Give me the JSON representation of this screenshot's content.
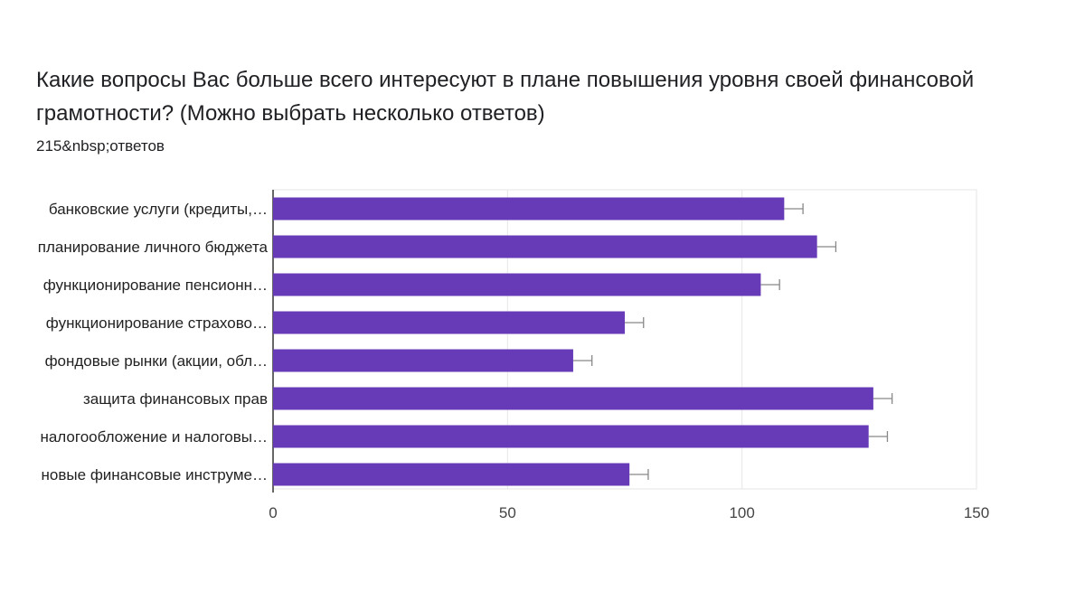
{
  "header": {
    "title": "Какие вопросы Вас больше всего интересуют в плане повышения уровня своей финансовой грамотности? (Можно выбрать несколько ответов)",
    "responses": "215&nbsp;ответов"
  },
  "chart_data": {
    "type": "bar",
    "orientation": "horizontal",
    "title": "Какие вопросы Вас больше всего интересуют в плане повышения уровня своей финансовой грамотности? (Можно выбрать несколько ответов)",
    "categories": [
      "банковские услуги (кредиты,…",
      "планирование личного бюджета",
      "функционирование пенсионн…",
      "функционирование страхово…",
      "фондовые рынки (акции, обл…",
      "защита финансовых прав",
      "налогообложение и налоговы…",
      "новые финансовые инструме…"
    ],
    "values": [
      109,
      116,
      104,
      75,
      64,
      128,
      127,
      76
    ],
    "error_bar": 4,
    "xlim": [
      0,
      150
    ],
    "xticks": [
      0,
      50,
      100,
      150
    ],
    "xlabel": "",
    "ylabel": "",
    "grid": true,
    "colors": {
      "bar": "#673ab7",
      "grid": "#e6e6e6",
      "axis": "#333333",
      "error": "#888888"
    }
  }
}
